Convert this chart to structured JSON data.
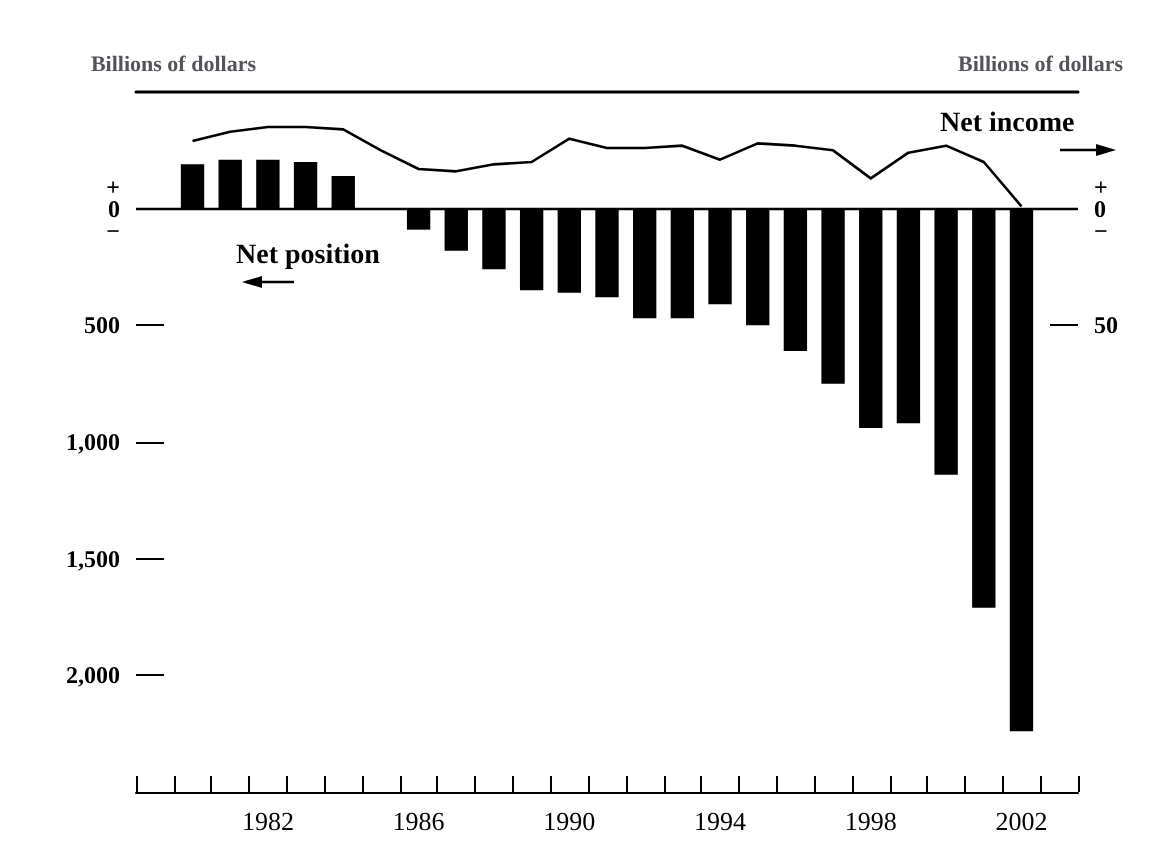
{
  "chart_data": {
    "type": "bar",
    "ylabel": "Billions of dollars",
    "y2label": "Billions of dollars",
    "categories": [
      null,
      null,
      null,
      "1982",
      null,
      null,
      null,
      "1986",
      null,
      null,
      null,
      "1990",
      null,
      null,
      null,
      "1994",
      null,
      null,
      null,
      "1998",
      null,
      null,
      null,
      "2002",
      null
    ],
    "series": [
      {
        "name": "Net position",
        "color": "#000000",
        "values": [
          null,
          190,
          210,
          210,
          200,
          140,
          null,
          -90,
          -180,
          -260,
          -350,
          -360,
          -380,
          -470,
          -470,
          -410,
          -500,
          -610,
          -750,
          -940,
          -920,
          -1140,
          -1710,
          -2240,
          null
        ]
      },
      {
        "name": "Net income",
        "type": "line",
        "axis": "y2",
        "color": "#000000",
        "marker": "none",
        "line_style": "solid",
        "values": [
          null,
          29,
          33,
          35,
          35,
          34,
          25,
          17,
          16,
          19,
          20,
          30,
          26,
          26,
          27,
          21,
          28,
          27,
          25,
          13,
          24,
          27,
          20,
          1,
          null
        ]
      }
    ],
    "ylim": [
      -2500,
      500
    ],
    "yticks": [
      {
        "value": 0,
        "label": "+\n0\n−"
      },
      {
        "value": -500,
        "label": "500"
      },
      {
        "value": -1000,
        "label": "1,000"
      },
      {
        "value": -1500,
        "label": "1,500"
      },
      {
        "value": -2000,
        "label": "2,000"
      }
    ],
    "y2lim": [
      -250,
      50
    ],
    "y2ticks": [
      {
        "value": 0,
        "label": "+\n0\n−"
      },
      {
        "value": -50,
        "label": "50"
      }
    ],
    "ref_lines": [
      {
        "axis": "y",
        "value": 0
      }
    ],
    "grid": false,
    "legend": false
  }
}
